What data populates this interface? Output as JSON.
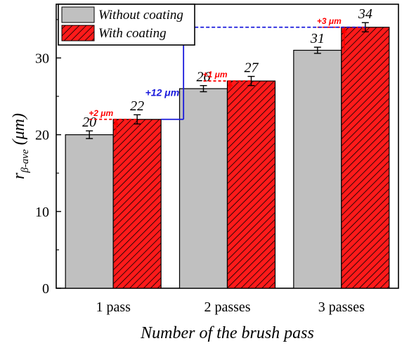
{
  "chart_data": {
    "type": "bar",
    "xlabel": "Number of the brush pass",
    "ylabel_main": "r",
    "ylabel_sub": "β-ave",
    "ylabel_unit": " (μm)",
    "categories": [
      "1 pass",
      "2 passes",
      "3 passes"
    ],
    "ylim": [
      0,
      37
    ],
    "yticks": [
      "0",
      "10",
      "20",
      "30"
    ],
    "yticks_values": [
      0,
      10,
      20,
      30
    ],
    "grid": false,
    "legend_position": "top-left",
    "series": [
      {
        "name": "Without coating",
        "values": [
          20,
          26,
          31
        ],
        "errors": [
          0.5,
          0.4,
          0.4
        ],
        "labels": [
          "20",
          "26",
          "31"
        ],
        "color": "#c0c0c0",
        "pattern": "solid"
      },
      {
        "name": "With coating",
        "values": [
          22,
          27,
          34
        ],
        "errors": [
          0.6,
          0.6,
          0.6
        ],
        "labels": [
          "22",
          "27",
          "34"
        ],
        "color": "#ff0000",
        "pattern": "hatched"
      }
    ],
    "annotations": [
      {
        "text": "+2 μm",
        "category": 0,
        "from": 20,
        "to": 22,
        "color": "#ff0000"
      },
      {
        "text": "+1 μm",
        "category": 1,
        "from": 26,
        "to": 27,
        "color": "#ff0000"
      },
      {
        "text": "+3 μm",
        "category": 2,
        "from": 31,
        "to": 34,
        "color": "#ff0000"
      },
      {
        "text": "+12 μm",
        "from": 22,
        "to": 34,
        "color": "#1a1adc"
      }
    ]
  }
}
